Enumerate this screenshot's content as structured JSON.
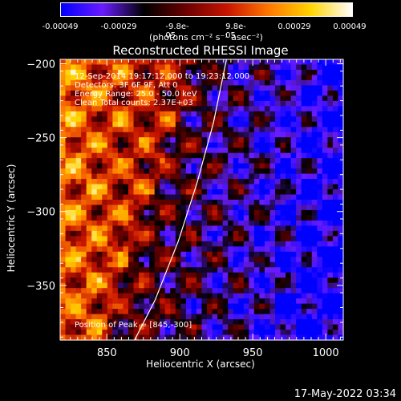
{
  "colorbar": {
    "tick_labels": [
      "-0.00049",
      "-0.00029",
      "-9.8e-05",
      "9.8e-05",
      "0.00029",
      "0.00049"
    ],
    "units": "(photons cm⁻² s⁻¹ asec⁻²)",
    "range": [
      -0.00049,
      0.00049
    ],
    "colors": [
      "#0000ff",
      "#6a1cff",
      "#000000",
      "#6a0000",
      "#c81400",
      "#ff7800",
      "#ffd400",
      "#ffffff"
    ]
  },
  "annotations": {
    "line1": "12-Sep-2014 19:17:12.000 to 19:23:12.000",
    "line2": "Detectors: 3F 6F 9F, Att 0",
    "line3": "Energy Range: 25.0 - 50.0 keV",
    "line4": "Clean    Total counts: 2.37E+03",
    "peak": "Position of Peak = [845,-300]"
  },
  "timestamp": "17-May-2022 03:34",
  "chart_data": {
    "type": "heatmap",
    "title": "Reconstructed RHESSI Image",
    "xlabel": "Heliocentric X (arcsec)",
    "ylabel": "Heliocentric Y (arcsec)",
    "xlim": [
      818,
      1012
    ],
    "ylim": [
      -387,
      -197
    ],
    "xticks": [
      850,
      900,
      950,
      1000
    ],
    "yticks": [
      -200,
      -250,
      -300,
      -350
    ],
    "xtick_labels": [
      "850",
      "900",
      "950",
      "1000"
    ],
    "ytick_labels": [
      "−200",
      "−250",
      "−300",
      "−350"
    ],
    "peak_position": [
      845,
      -300
    ],
    "limb_curve": {
      "x": [
        932,
        923,
        912,
        899,
        883,
        869
      ],
      "y": [
        -197,
        -240,
        -280,
        -320,
        -360,
        -387
      ]
    }
  }
}
